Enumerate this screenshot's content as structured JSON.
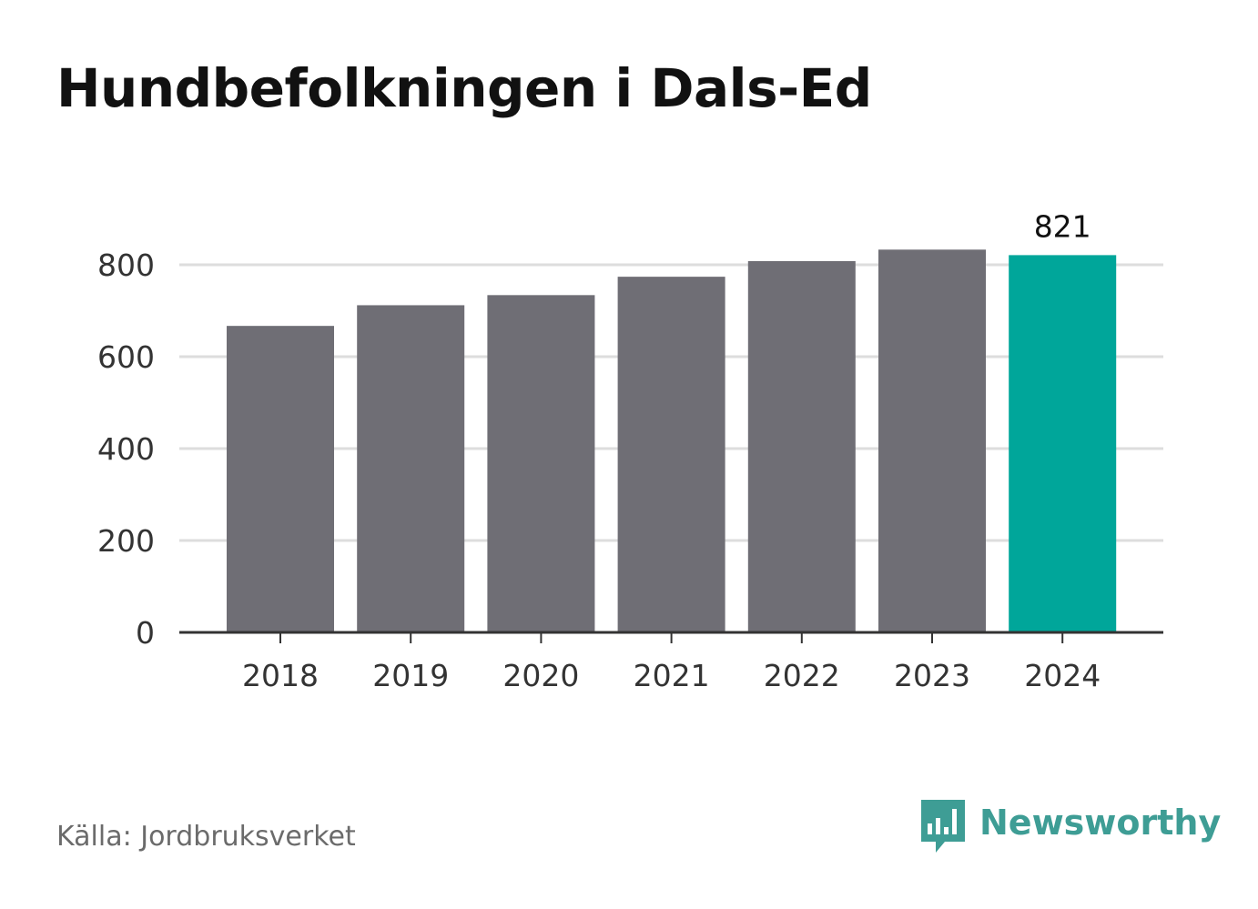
{
  "title": "Hundbefolkningen i Dals-Ed",
  "source": "Källa: Jordbruksverket",
  "brand": {
    "name": "Newsworthy",
    "icon": "newsworthy-logo-icon",
    "color": "#3e9d95"
  },
  "colors": {
    "bar": "#6f6e75",
    "highlight": "#00a69a",
    "grid": "#dddddd",
    "axis": "#333333"
  },
  "chart_data": {
    "type": "bar",
    "title": "Hundbefolkningen i Dals-Ed",
    "xlabel": "",
    "ylabel": "",
    "categories": [
      "2018",
      "2019",
      "2020",
      "2021",
      "2022",
      "2023",
      "2024"
    ],
    "values": [
      667,
      712,
      734,
      774,
      808,
      833,
      821
    ],
    "highlight_index": 6,
    "data_labels": [
      {
        "category": "2024",
        "text": "821"
      }
    ],
    "yticks": [
      "0",
      "200",
      "400",
      "600",
      "800"
    ],
    "ylim": [
      0,
      800
    ],
    "grid": true,
    "legend": "none"
  }
}
